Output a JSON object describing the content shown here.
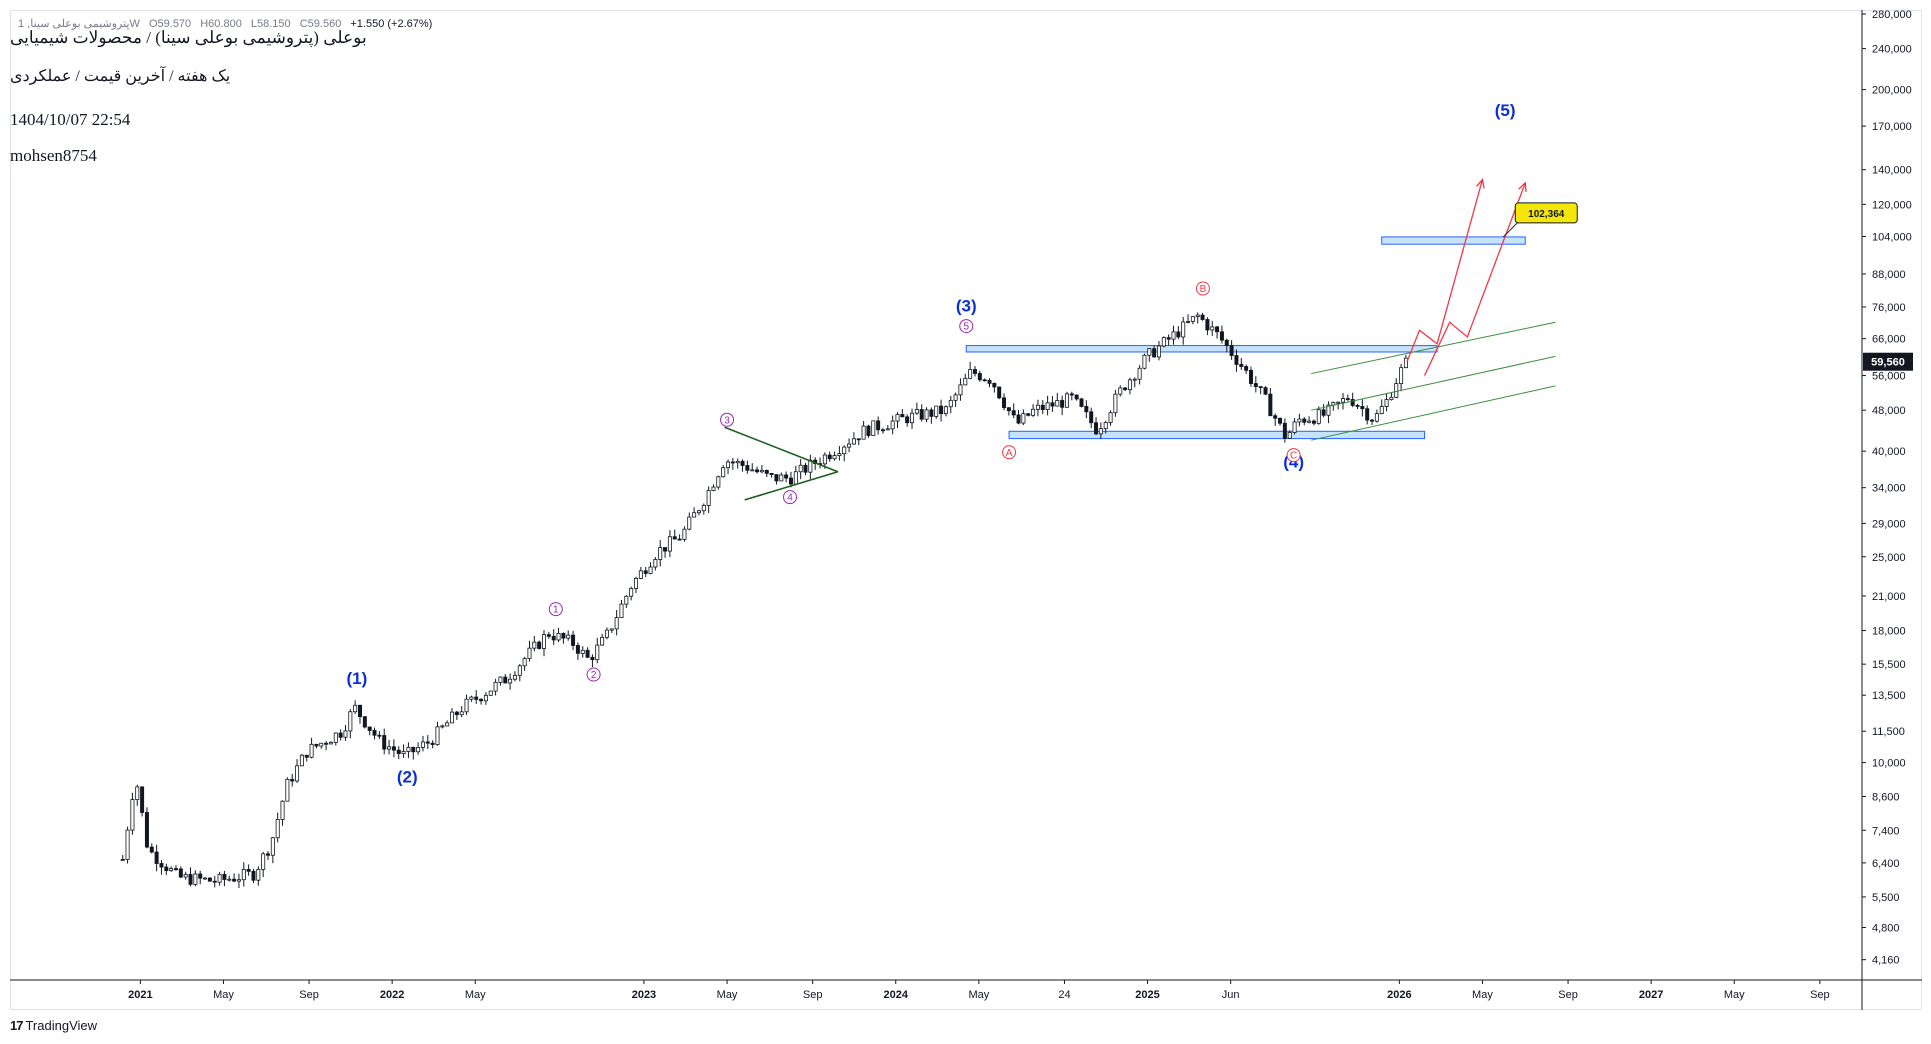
{
  "header": {
    "ohlc": {
      "symbol": "پتروشیمی بوعلی سینا, 1W",
      "open": "O59.570",
      "high": "H60.800",
      "low": "L58.150",
      "close": "C59.560",
      "change": "+1.550 (+2.67%)"
    },
    "title": "بوعلی (پتروشیمی بوعلی سینا) / محصولات شیمیایی",
    "subtitle": "یک هفته / آخرین قیمت / عملکردی",
    "datetime": "1404/10/07 22:54",
    "author": "mohsen8754"
  },
  "branding": {
    "logo_text": "TradingView"
  },
  "colors": {
    "candle": "#131722",
    "wave_blue": "#0b2fd6",
    "wave_purple": "#9c27b0",
    "wave_red": "#f23645",
    "zone_fill": "#bbdefb",
    "zone_stroke": "#2962ff",
    "channel": "#388e3c",
    "triangle": "#1b5e20",
    "price_label_bg": "#131722",
    "target_bg": "#f5e60a"
  },
  "chart_data": {
    "type": "candlestick",
    "title": "بوعلی (پتروشیمی بوعلی سینا) / محصولات شیمیایی",
    "interval": "1W",
    "y_scale": "log",
    "ylim": [
      3800,
      285000
    ],
    "y_ticks": [
      4160,
      4800,
      5500,
      6400,
      7400,
      8600,
      10000,
      11500,
      13500,
      15500,
      18000,
      21000,
      25000,
      29000,
      34000,
      40000,
      48000,
      56000,
      66000,
      76000,
      88000,
      104000,
      120000,
      140000,
      170000,
      200000,
      240000,
      280000
    ],
    "y_tick_labels": [
      "4,160",
      "4,800",
      "5,500",
      "6,400",
      "7,400",
      "8,600",
      "10,000",
      "11,500",
      "13,500",
      "15,500",
      "18,000",
      "21,000",
      "25,000",
      "29,000",
      "34,000",
      "40,000",
      "48,000",
      "56,000",
      "66,000",
      "76,000",
      "88,000",
      "104,000",
      "120,000",
      "140,000",
      "170,000",
      "200,000",
      "240,000",
      "280,000"
    ],
    "x_ticks": [
      {
        "t": 2021.0,
        "label": "2021",
        "bold": true
      },
      {
        "t": 2021.33,
        "label": "May",
        "bold": false
      },
      {
        "t": 2021.67,
        "label": "Sep",
        "bold": false
      },
      {
        "t": 2022.0,
        "label": "2022",
        "bold": true
      },
      {
        "t": 2022.33,
        "label": "May",
        "bold": false
      },
      {
        "t": 2023.0,
        "label": "2023",
        "bold": true
      },
      {
        "t": 2023.33,
        "label": "May",
        "bold": false
      },
      {
        "t": 2023.67,
        "label": "Sep",
        "bold": false
      },
      {
        "t": 2024.0,
        "label": "2024",
        "bold": true
      },
      {
        "t": 2024.33,
        "label": "May",
        "bold": false
      },
      {
        "t": 2024.67,
        "label": "24",
        "bold": false
      },
      {
        "t": 2025.0,
        "label": "2025",
        "bold": true
      },
      {
        "t": 2025.33,
        "label": "Jun",
        "bold": false
      },
      {
        "t": 2026.0,
        "label": "2026",
        "bold": true
      },
      {
        "t": 2026.33,
        "label": "May",
        "bold": false
      },
      {
        "t": 2026.67,
        "label": "Sep",
        "bold": false
      },
      {
        "t": 2027.0,
        "label": "2027",
        "bold": true
      },
      {
        "t": 2027.33,
        "label": "May",
        "bold": false
      },
      {
        "t": 2027.67,
        "label": "Sep",
        "bold": false
      }
    ],
    "xlim": [
      2020.8,
      2027.75
    ],
    "price_path": [
      [
        2020.93,
        6500
      ],
      [
        2020.98,
        9500
      ],
      [
        2021.03,
        6800
      ],
      [
        2021.15,
        6000
      ],
      [
        2021.3,
        5900
      ],
      [
        2021.45,
        6100
      ],
      [
        2021.52,
        7000
      ],
      [
        2021.58,
        9000
      ],
      [
        2021.66,
        10500
      ],
      [
        2021.8,
        11500
      ],
      [
        2021.85,
        12800
      ],
      [
        2021.95,
        11000
      ],
      [
        2022.05,
        10300
      ],
      [
        2022.15,
        11000
      ],
      [
        2022.28,
        12800
      ],
      [
        2022.45,
        14500
      ],
      [
        2022.62,
        17800
      ],
      [
        2022.72,
        17000
      ],
      [
        2022.78,
        15800
      ],
      [
        2022.85,
        17500
      ],
      [
        2022.95,
        22000
      ],
      [
        2023.05,
        25500
      ],
      [
        2023.15,
        27500
      ],
      [
        2023.25,
        33000
      ],
      [
        2023.32,
        38500
      ],
      [
        2023.4,
        37500
      ],
      [
        2023.5,
        35500
      ],
      [
        2023.58,
        35500
      ],
      [
        2023.66,
        37500
      ],
      [
        2023.75,
        40000
      ],
      [
        2023.88,
        44000
      ],
      [
        2024.05,
        46500
      ],
      [
        2024.2,
        48000
      ],
      [
        2024.3,
        57000
      ],
      [
        2024.38,
        55000
      ],
      [
        2024.48,
        45000
      ],
      [
        2024.55,
        48000
      ],
      [
        2024.7,
        50500
      ],
      [
        2024.8,
        44000
      ],
      [
        2024.9,
        53000
      ],
      [
        2025.0,
        61000
      ],
      [
        2025.12,
        68000
      ],
      [
        2025.2,
        73000
      ],
      [
        2025.28,
        67000
      ],
      [
        2025.38,
        58000
      ],
      [
        2025.47,
        50000
      ],
      [
        2025.55,
        42500
      ],
      [
        2025.6,
        46000
      ],
      [
        2025.7,
        47000
      ],
      [
        2025.8,
        51000
      ],
      [
        2025.9,
        46000
      ],
      [
        2025.95,
        50000
      ],
      [
        2026.0,
        56500
      ],
      [
        2026.03,
        59560
      ]
    ],
    "last_price": "59,560",
    "target_label": "102,364",
    "zones": [
      {
        "t0": 2024.28,
        "t1": 2026.15,
        "low": 62200,
        "high": 64000
      },
      {
        "t0": 2024.45,
        "t1": 2026.1,
        "low": 42300,
        "high": 43700
      },
      {
        "t0": 2025.93,
        "t1": 2026.5,
        "low": 100500,
        "high": 103800
      }
    ],
    "triangle": {
      "upper": [
        [
          2023.32,
          44500
        ],
        [
          2023.77,
          36500
        ]
      ],
      "lower": [
        [
          2023.4,
          32200
        ],
        [
          2023.77,
          36500
        ]
      ]
    },
    "channel_lines": [
      [
        [
          2025.65,
          56500
        ],
        [
          2026.62,
          71000
        ]
      ],
      [
        [
          2025.65,
          48000
        ],
        [
          2026.62,
          61000
        ]
      ],
      [
        [
          2025.65,
          42000
        ],
        [
          2026.62,
          53500
        ]
      ]
    ],
    "projection_paths": [
      [
        [
          2026.03,
          59500
        ],
        [
          2026.08,
          68500
        ],
        [
          2026.15,
          64500
        ],
        [
          2026.33,
          134000
        ]
      ],
      [
        [
          2026.1,
          56000
        ],
        [
          2026.2,
          71000
        ],
        [
          2026.27,
          66500
        ],
        [
          2026.5,
          132000
        ]
      ]
    ],
    "wave_labels": [
      {
        "text": "(1)",
        "t": 2021.86,
        "p": 14200,
        "color": "blue"
      },
      {
        "text": "(2)",
        "t": 2022.06,
        "p": 9150,
        "color": "blue"
      },
      {
        "text": "(3)",
        "t": 2024.28,
        "p": 74500,
        "color": "blue"
      },
      {
        "text": "(4)",
        "t": 2025.58,
        "p": 37200,
        "color": "blue"
      },
      {
        "text": "(5)",
        "t": 2026.42,
        "p": 178000,
        "color": "blue"
      }
    ],
    "circle_labels": [
      {
        "text": "1",
        "t": 2022.65,
        "p": 19800,
        "color": "purple"
      },
      {
        "text": "2",
        "t": 2022.8,
        "p": 14800,
        "color": "purple"
      },
      {
        "text": "3",
        "t": 2023.33,
        "p": 46000,
        "color": "purple"
      },
      {
        "text": "4",
        "t": 2023.58,
        "p": 32600,
        "color": "purple"
      },
      {
        "text": "5",
        "t": 2024.28,
        "p": 69800,
        "color": "purple"
      },
      {
        "text": "A",
        "t": 2024.45,
        "p": 39800,
        "color": "red"
      },
      {
        "text": "B",
        "t": 2025.22,
        "p": 82500,
        "color": "red"
      },
      {
        "text": "C",
        "t": 2025.58,
        "p": 39300,
        "color": "red"
      }
    ]
  }
}
